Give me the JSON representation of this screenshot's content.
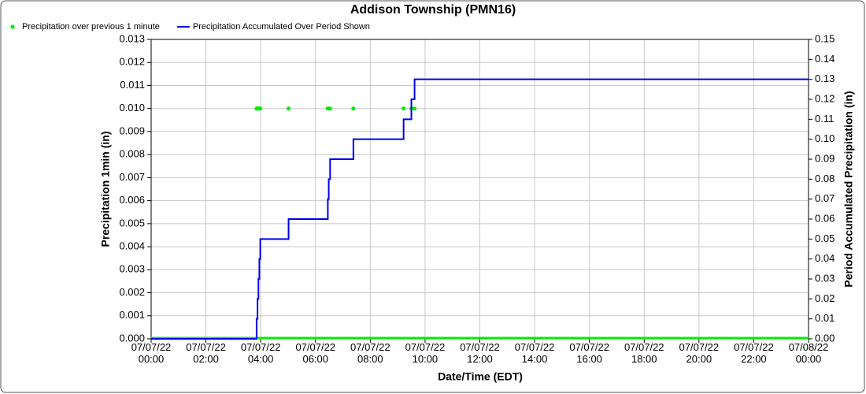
{
  "chart_data": {
    "type": "scatter-step",
    "title": "Addison Township (PMN16)",
    "xlabel": "Date/Time (EDT)",
    "ylabel": "Precipitation 1min (in)",
    "y2label": "Period Accumulated Precipitation (in)",
    "xlim": [
      "07/07/22 00:00",
      "07/08/22 00:00"
    ],
    "xticks": [
      "07/07/22 00:00",
      "07/07/22 02:00",
      "07/07/22 04:00",
      "07/07/22 06:00",
      "07/07/22 08:00",
      "07/07/22 10:00",
      "07/07/22 12:00",
      "07/07/22 14:00",
      "07/07/22 16:00",
      "07/07/22 18:00",
      "07/07/22 20:00",
      "07/07/22 22:00",
      "07/08/22 00:00"
    ],
    "ylim": [
      0,
      0.013
    ],
    "yticks": [
      {
        "value": 0,
        "label": "0.000"
      },
      {
        "value": 0.001,
        "label": "0.001"
      },
      {
        "value": 0.002,
        "label": "0.002"
      },
      {
        "value": 0.003,
        "label": "0.003"
      },
      {
        "value": 0.004,
        "label": "0.004"
      },
      {
        "value": 0.005,
        "label": "0.005"
      },
      {
        "value": 0.006,
        "label": "0.006"
      },
      {
        "value": 0.007,
        "label": "0.007"
      },
      {
        "value": 0.008,
        "label": "0.008"
      },
      {
        "value": 0.009,
        "label": "0.009"
      },
      {
        "value": 0.01,
        "label": "0.010"
      },
      {
        "value": 0.011,
        "label": "0.011"
      },
      {
        "value": 0.012,
        "label": "0.012"
      },
      {
        "value": 0.013,
        "label": "0.013"
      }
    ],
    "y2lim": [
      0,
      0.15
    ],
    "y2ticks": [
      {
        "value": 0,
        "label": "0.00"
      },
      {
        "value": 0.01,
        "label": "0.01"
      },
      {
        "value": 0.02,
        "label": "0.02"
      },
      {
        "value": 0.03,
        "label": "0.03"
      },
      {
        "value": 0.04,
        "label": "0.04"
      },
      {
        "value": 0.05,
        "label": "0.05"
      },
      {
        "value": 0.06,
        "label": "0.06"
      },
      {
        "value": 0.07,
        "label": "0.07"
      },
      {
        "value": 0.08,
        "label": "0.08"
      },
      {
        "value": 0.09,
        "label": "0.09"
      },
      {
        "value": 0.1,
        "label": "0.10"
      },
      {
        "value": 0.11,
        "label": "0.11"
      },
      {
        "value": 0.12,
        "label": "0.12"
      },
      {
        "value": 0.13,
        "label": "0.13"
      },
      {
        "value": 0.14,
        "label": "0.14"
      },
      {
        "value": 0.15,
        "label": "0.15"
      }
    ],
    "grid": true,
    "legend": "top-left",
    "series": [
      {
        "name": "Precipitation over previous 1 minute",
        "color": "#00ee00",
        "mark": "dot",
        "x": [
          "07/07/22 03:51",
          "07/07/22 03:53",
          "07/07/22 03:55",
          "07/07/22 03:57",
          "07/07/22 03:59",
          "07/07/22 05:01",
          "07/07/22 06:27",
          "07/07/22 06:29",
          "07/07/22 06:32",
          "07/07/22 07:23",
          "07/07/22 09:13",
          "07/07/22 09:30",
          "07/07/22 09:37"
        ],
        "values": [
          0.01,
          0.01,
          0.01,
          0.01,
          0.01,
          0.01,
          0.01,
          0.01,
          0.01,
          0.01,
          0.01,
          0.01,
          0.01
        ]
      },
      {
        "name": "Precipitation Accumulated Over Period Shown",
        "color": "#0000ee",
        "mark": "step",
        "axis": "y2",
        "x": [
          "07/07/22 00:00",
          "07/07/22 03:51",
          "07/07/22 03:53",
          "07/07/22 03:55",
          "07/07/22 03:57",
          "07/07/22 03:59",
          "07/07/22 05:01",
          "07/07/22 06:27",
          "07/07/22 06:29",
          "07/07/22 06:32",
          "07/07/22 07:23",
          "07/07/22 09:13",
          "07/07/22 09:30",
          "07/07/22 09:37",
          "07/08/22 00:00"
        ],
        "values": [
          0,
          0.01,
          0.02,
          0.03,
          0.04,
          0.05,
          0.06,
          0.07,
          0.08,
          0.09,
          0.1,
          0.11,
          0.12,
          0.13,
          0.13
        ]
      }
    ]
  }
}
